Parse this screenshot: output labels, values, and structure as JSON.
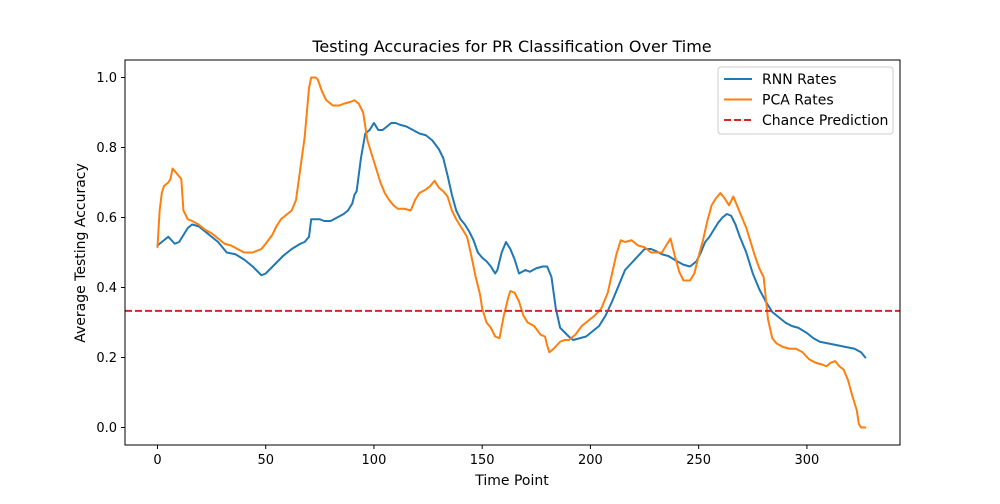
{
  "chart_data": {
    "type": "line",
    "title": "Testing Accuracies for PR Classification Over Time",
    "xlabel": "Time Point",
    "ylabel": "Average Testing Accuracy",
    "xlim": [
      -15,
      343
    ],
    "ylim": [
      -0.05,
      1.05
    ],
    "xticks": [
      0,
      50,
      100,
      150,
      200,
      250,
      300
    ],
    "yticks": [
      0.0,
      0.2,
      0.4,
      0.6,
      0.8,
      1.0
    ],
    "xtick_labels": [
      "0",
      "50",
      "100",
      "150",
      "200",
      "250",
      "300"
    ],
    "ytick_labels": [
      "0.0",
      "0.2",
      "0.4",
      "0.6",
      "0.8",
      "1.0"
    ],
    "grid": false,
    "legend_position": "upper right",
    "series": [
      {
        "name": "RNN Rates",
        "color": "#1f77b4",
        "style": "solid",
        "points": [
          [
            0,
            0.52
          ],
          [
            2,
            0.53
          ],
          [
            5,
            0.545
          ],
          [
            8,
            0.525
          ],
          [
            10,
            0.53
          ],
          [
            12,
            0.55
          ],
          [
            14,
            0.57
          ],
          [
            16,
            0.58
          ],
          [
            19,
            0.575
          ],
          [
            22,
            0.56
          ],
          [
            25,
            0.545
          ],
          [
            28,
            0.53
          ],
          [
            30,
            0.515
          ],
          [
            32,
            0.5
          ],
          [
            36,
            0.495
          ],
          [
            40,
            0.48
          ],
          [
            44,
            0.46
          ],
          [
            48,
            0.435
          ],
          [
            50,
            0.44
          ],
          [
            54,
            0.465
          ],
          [
            58,
            0.49
          ],
          [
            62,
            0.51
          ],
          [
            66,
            0.525
          ],
          [
            68,
            0.53
          ],
          [
            70,
            0.545
          ],
          [
            71,
            0.595
          ],
          [
            73,
            0.595
          ],
          [
            75,
            0.595
          ],
          [
            77,
            0.59
          ],
          [
            80,
            0.59
          ],
          [
            83,
            0.6
          ],
          [
            86,
            0.61
          ],
          [
            88,
            0.62
          ],
          [
            90,
            0.64
          ],
          [
            91,
            0.665
          ],
          [
            92,
            0.675
          ],
          [
            94,
            0.77
          ],
          [
            96,
            0.84
          ],
          [
            98,
            0.85
          ],
          [
            100,
            0.87
          ],
          [
            102,
            0.85
          ],
          [
            104,
            0.85
          ],
          [
            106,
            0.86
          ],
          [
            108,
            0.87
          ],
          [
            110,
            0.87
          ],
          [
            112,
            0.865
          ],
          [
            115,
            0.86
          ],
          [
            118,
            0.85
          ],
          [
            121,
            0.84
          ],
          [
            124,
            0.835
          ],
          [
            127,
            0.82
          ],
          [
            130,
            0.795
          ],
          [
            132,
            0.77
          ],
          [
            134,
            0.72
          ],
          [
            136,
            0.665
          ],
          [
            138,
            0.62
          ],
          [
            140,
            0.595
          ],
          [
            142,
            0.58
          ],
          [
            144,
            0.56
          ],
          [
            146,
            0.535
          ],
          [
            148,
            0.5
          ],
          [
            150,
            0.485
          ],
          [
            152,
            0.475
          ],
          [
            154,
            0.46
          ],
          [
            156,
            0.44
          ],
          [
            157,
            0.45
          ],
          [
            159,
            0.5
          ],
          [
            161,
            0.53
          ],
          [
            163,
            0.51
          ],
          [
            165,
            0.48
          ],
          [
            167,
            0.44
          ],
          [
            170,
            0.45
          ],
          [
            172,
            0.445
          ],
          [
            175,
            0.455
          ],
          [
            178,
            0.46
          ],
          [
            180,
            0.46
          ],
          [
            182,
            0.43
          ],
          [
            184,
            0.34
          ],
          [
            186,
            0.285
          ],
          [
            190,
            0.26
          ],
          [
            192,
            0.25
          ],
          [
            195,
            0.255
          ],
          [
            198,
            0.26
          ],
          [
            200,
            0.27
          ],
          [
            204,
            0.29
          ],
          [
            207,
            0.32
          ],
          [
            210,
            0.36
          ],
          [
            212,
            0.39
          ],
          [
            214,
            0.42
          ],
          [
            216,
            0.45
          ],
          [
            219,
            0.47
          ],
          [
            222,
            0.49
          ],
          [
            225,
            0.51
          ],
          [
            228,
            0.51
          ],
          [
            230,
            0.505
          ],
          [
            233,
            0.495
          ],
          [
            236,
            0.49
          ],
          [
            240,
            0.475
          ],
          [
            243,
            0.465
          ],
          [
            246,
            0.46
          ],
          [
            249,
            0.475
          ],
          [
            251,
            0.5
          ],
          [
            253,
            0.53
          ],
          [
            255,
            0.545
          ],
          [
            257,
            0.565
          ],
          [
            259,
            0.585
          ],
          [
            261,
            0.6
          ],
          [
            263,
            0.61
          ],
          [
            265,
            0.605
          ],
          [
            267,
            0.58
          ],
          [
            269,
            0.545
          ],
          [
            272,
            0.5
          ],
          [
            275,
            0.44
          ],
          [
            278,
            0.395
          ],
          [
            281,
            0.36
          ],
          [
            284,
            0.33
          ],
          [
            287,
            0.315
          ],
          [
            290,
            0.3
          ],
          [
            293,
            0.29
          ],
          [
            296,
            0.285
          ],
          [
            300,
            0.27
          ],
          [
            303,
            0.255
          ],
          [
            306,
            0.245
          ],
          [
            310,
            0.24
          ],
          [
            314,
            0.235
          ],
          [
            318,
            0.23
          ],
          [
            322,
            0.225
          ],
          [
            325,
            0.215
          ],
          [
            327,
            0.2
          ]
        ]
      },
      {
        "name": "PCA Rates",
        "color": "#ff7f0e",
        "style": "solid",
        "points": [
          [
            0,
            0.515
          ],
          [
            1,
            0.62
          ],
          [
            2,
            0.67
          ],
          [
            3,
            0.69
          ],
          [
            5,
            0.7
          ],
          [
            6,
            0.71
          ],
          [
            7,
            0.74
          ],
          [
            9,
            0.725
          ],
          [
            11,
            0.71
          ],
          [
            12,
            0.62
          ],
          [
            14,
            0.595
          ],
          [
            16,
            0.59
          ],
          [
            19,
            0.58
          ],
          [
            22,
            0.565
          ],
          [
            25,
            0.555
          ],
          [
            28,
            0.54
          ],
          [
            31,
            0.525
          ],
          [
            34,
            0.52
          ],
          [
            37,
            0.51
          ],
          [
            40,
            0.5
          ],
          [
            44,
            0.5
          ],
          [
            48,
            0.51
          ],
          [
            50,
            0.525
          ],
          [
            53,
            0.55
          ],
          [
            55,
            0.575
          ],
          [
            57,
            0.595
          ],
          [
            60,
            0.61
          ],
          [
            62,
            0.62
          ],
          [
            64,
            0.65
          ],
          [
            66,
            0.74
          ],
          [
            68,
            0.83
          ],
          [
            69,
            0.9
          ],
          [
            70,
            0.97
          ],
          [
            71,
            1.0
          ],
          [
            73,
            1.0
          ],
          [
            74,
            0.995
          ],
          [
            76,
            0.96
          ],
          [
            78,
            0.935
          ],
          [
            81,
            0.92
          ],
          [
            84,
            0.92
          ],
          [
            86,
            0.925
          ],
          [
            89,
            0.93
          ],
          [
            91,
            0.935
          ],
          [
            93,
            0.925
          ],
          [
            95,
            0.9
          ],
          [
            97,
            0.82
          ],
          [
            99,
            0.78
          ],
          [
            101,
            0.74
          ],
          [
            103,
            0.7
          ],
          [
            105,
            0.67
          ],
          [
            107,
            0.65
          ],
          [
            109,
            0.635
          ],
          [
            111,
            0.625
          ],
          [
            114,
            0.625
          ],
          [
            117,
            0.62
          ],
          [
            119,
            0.65
          ],
          [
            121,
            0.67
          ],
          [
            124,
            0.68
          ],
          [
            126,
            0.69
          ],
          [
            128,
            0.705
          ],
          [
            130,
            0.685
          ],
          [
            132,
            0.675
          ],
          [
            134,
            0.66
          ],
          [
            136,
            0.62
          ],
          [
            138,
            0.595
          ],
          [
            140,
            0.575
          ],
          [
            143,
            0.545
          ],
          [
            145,
            0.49
          ],
          [
            147,
            0.43
          ],
          [
            149,
            0.38
          ],
          [
            150,
            0.34
          ],
          [
            152,
            0.3
          ],
          [
            154,
            0.285
          ],
          [
            156,
            0.26
          ],
          [
            158,
            0.255
          ],
          [
            160,
            0.32
          ],
          [
            162,
            0.37
          ],
          [
            163,
            0.39
          ],
          [
            165,
            0.385
          ],
          [
            167,
            0.36
          ],
          [
            169,
            0.32
          ],
          [
            171,
            0.3
          ],
          [
            174,
            0.29
          ],
          [
            177,
            0.265
          ],
          [
            179,
            0.26
          ],
          [
            180,
            0.235
          ],
          [
            181,
            0.215
          ],
          [
            183,
            0.225
          ],
          [
            186,
            0.245
          ],
          [
            188,
            0.25
          ],
          [
            190,
            0.25
          ],
          [
            193,
            0.265
          ],
          [
            196,
            0.29
          ],
          [
            199,
            0.305
          ],
          [
            202,
            0.32
          ],
          [
            205,
            0.34
          ],
          [
            208,
            0.385
          ],
          [
            210,
            0.44
          ],
          [
            212,
            0.495
          ],
          [
            214,
            0.535
          ],
          [
            216,
            0.53
          ],
          [
            219,
            0.535
          ],
          [
            222,
            0.52
          ],
          [
            225,
            0.515
          ],
          [
            228,
            0.5
          ],
          [
            231,
            0.5
          ],
          [
            233,
            0.5
          ],
          [
            235,
            0.52
          ],
          [
            237,
            0.54
          ],
          [
            239,
            0.49
          ],
          [
            241,
            0.445
          ],
          [
            243,
            0.42
          ],
          [
            246,
            0.42
          ],
          [
            248,
            0.44
          ],
          [
            250,
            0.49
          ],
          [
            252,
            0.535
          ],
          [
            254,
            0.59
          ],
          [
            256,
            0.635
          ],
          [
            258,
            0.655
          ],
          [
            260,
            0.67
          ],
          [
            262,
            0.655
          ],
          [
            264,
            0.635
          ],
          [
            266,
            0.66
          ],
          [
            268,
            0.63
          ],
          [
            270,
            0.6
          ],
          [
            272,
            0.57
          ],
          [
            274,
            0.53
          ],
          [
            276,
            0.49
          ],
          [
            278,
            0.455
          ],
          [
            280,
            0.43
          ],
          [
            281,
            0.37
          ],
          [
            282,
            0.31
          ],
          [
            284,
            0.255
          ],
          [
            286,
            0.24
          ],
          [
            289,
            0.23
          ],
          [
            292,
            0.225
          ],
          [
            295,
            0.225
          ],
          [
            298,
            0.215
          ],
          [
            301,
            0.195
          ],
          [
            304,
            0.185
          ],
          [
            307,
            0.18
          ],
          [
            309,
            0.175
          ],
          [
            311,
            0.185
          ],
          [
            313,
            0.19
          ],
          [
            315,
            0.175
          ],
          [
            317,
            0.165
          ],
          [
            319,
            0.135
          ],
          [
            321,
            0.09
          ],
          [
            323,
            0.05
          ],
          [
            324,
            0.01
          ],
          [
            325,
            0.0
          ],
          [
            327,
            0.0
          ]
        ]
      },
      {
        "name": "Chance Prediction",
        "color": "#d62728",
        "style": "dashed",
        "y": 0.3333
      }
    ]
  }
}
